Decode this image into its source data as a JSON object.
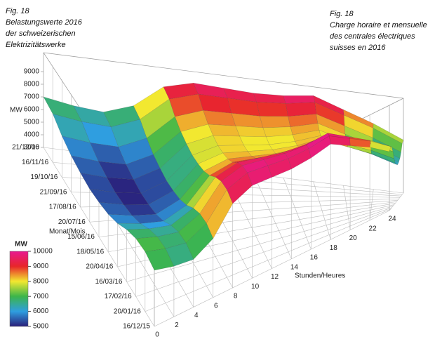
{
  "chart_data": {
    "type": "surface",
    "title": [
      "Fig. 18",
      "Belastungswerte 2016",
      "der schweizerischen",
      "Elektrizitätswerke"
    ],
    "subtitle": [
      "Fig. 18",
      "Charge horaire et mensuelle",
      "des centrales électriques",
      "suisses en 2016"
    ],
    "x_label": "Stunden/Heures",
    "y_label": "Monat/Mois",
    "z_label": "MW",
    "x": [
      0,
      2,
      4,
      6,
      8,
      10,
      12,
      14,
      16,
      18,
      20,
      22,
      24
    ],
    "xlim": [
      0,
      24
    ],
    "xticks": [
      0,
      2,
      4,
      6,
      8,
      10,
      12,
      14,
      16,
      18,
      20,
      22,
      24
    ],
    "categories": [
      "16/12/15",
      "20/01/16",
      "17/02/16",
      "16/03/16",
      "20/04/16",
      "18/05/16",
      "15/06/16",
      "20/07/16",
      "17/08/16",
      "21/09/16",
      "19/10/16",
      "16/11/16",
      "21/12/16"
    ],
    "zlim": [
      3000,
      10500
    ],
    "zticks": [
      3000,
      4000,
      5000,
      6000,
      7000,
      8000,
      9000
    ],
    "values": [
      [
        7000,
        6600,
        6400,
        7200,
        9000,
        9600,
        9500,
        9400,
        9500,
        9800,
        9000,
        8200,
        7200
      ],
      [
        7300,
        6900,
        6700,
        7500,
        9300,
        9900,
        9800,
        9700,
        9800,
        10100,
        9300,
        8500,
        7500
      ],
      [
        7200,
        6800,
        6600,
        7400,
        9200,
        9800,
        9700,
        9600,
        9700,
        10000,
        9200,
        8400,
        7400
      ],
      [
        6800,
        6400,
        6200,
        7000,
        8800,
        9400,
        9300,
        9200,
        9300,
        9600,
        8800,
        8000,
        7000
      ],
      [
        6200,
        5800,
        5600,
        6400,
        8200,
        8800,
        8700,
        8600,
        8700,
        9000,
        8200,
        7400,
        6400
      ],
      [
        5800,
        5400,
        5200,
        6000,
        7800,
        8400,
        8300,
        8200,
        8300,
        8600,
        7800,
        7000,
        6000
      ],
      [
        5600,
        5200,
        5000,
        5800,
        7600,
        8200,
        8100,
        8000,
        8100,
        8400,
        7600,
        6800,
        5800
      ],
      [
        5500,
        5100,
        4900,
        5700,
        7500,
        8100,
        8000,
        7900,
        8000,
        8300,
        7500,
        6700,
        5700
      ],
      [
        5600,
        5200,
        5000,
        5800,
        7600,
        8200,
        8100,
        8000,
        8100,
        8400,
        7600,
        6800,
        5800
      ],
      [
        5800,
        5400,
        5200,
        6000,
        7800,
        8400,
        8300,
        8200,
        8300,
        8600,
        7800,
        7000,
        6000
      ],
      [
        6200,
        5800,
        5600,
        6400,
        8200,
        8800,
        8700,
        8600,
        8700,
        9000,
        8200,
        7400,
        6400
      ],
      [
        6800,
        6400,
        6200,
        7000,
        8800,
        9400,
        9300,
        9200,
        9300,
        9600,
        8800,
        8000,
        7000
      ],
      [
        7000,
        6600,
        6400,
        7200,
        9000,
        9600,
        9500,
        9400,
        9500,
        9800,
        9000,
        8200,
        7200
      ]
    ],
    "colorbar": {
      "title": "MW",
      "ticks": [
        5000,
        6000,
        7000,
        8000,
        9000,
        10000
      ],
      "colors": [
        "#2a1f7a",
        "#2f9ee0",
        "#3cb54a",
        "#f2e830",
        "#e8262a",
        "#e8198f"
      ]
    },
    "grid": true
  }
}
